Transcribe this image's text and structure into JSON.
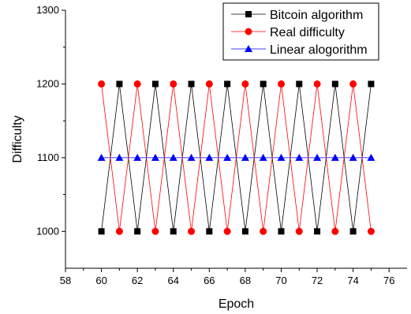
{
  "chart_data": {
    "type": "line",
    "title": "",
    "xlabel": "Epoch",
    "ylabel": "Difficulty",
    "xlim": [
      58,
      77
    ],
    "ylim": [
      950,
      1300
    ],
    "xticks": [
      58,
      60,
      62,
      64,
      66,
      68,
      70,
      72,
      74,
      76
    ],
    "yticks": [
      1000,
      1100,
      1200,
      1300
    ],
    "grid": false,
    "legend_position": "top-right",
    "x": [
      60,
      61,
      62,
      63,
      64,
      65,
      66,
      67,
      68,
      69,
      70,
      71,
      72,
      73,
      74,
      75
    ],
    "series": [
      {
        "name": "Bitcoin algorithm",
        "color": "#000000",
        "marker": "square",
        "values": [
          1000,
          1200,
          1000,
          1200,
          1000,
          1200,
          1000,
          1200,
          1000,
          1200,
          1000,
          1200,
          1000,
          1200,
          1000,
          1200
        ]
      },
      {
        "name": "Real difficulty",
        "color": "#ff0000",
        "marker": "circle",
        "values": [
          1200,
          1000,
          1200,
          1000,
          1200,
          1000,
          1200,
          1000,
          1200,
          1000,
          1200,
          1000,
          1200,
          1000,
          1200,
          1000
        ]
      },
      {
        "name": "Linear alogorithm",
        "color": "#0000ff",
        "marker": "triangle",
        "values": [
          1100,
          1100,
          1100,
          1100,
          1100,
          1100,
          1100,
          1100,
          1100,
          1100,
          1100,
          1100,
          1100,
          1100,
          1100,
          1100
        ]
      }
    ]
  }
}
